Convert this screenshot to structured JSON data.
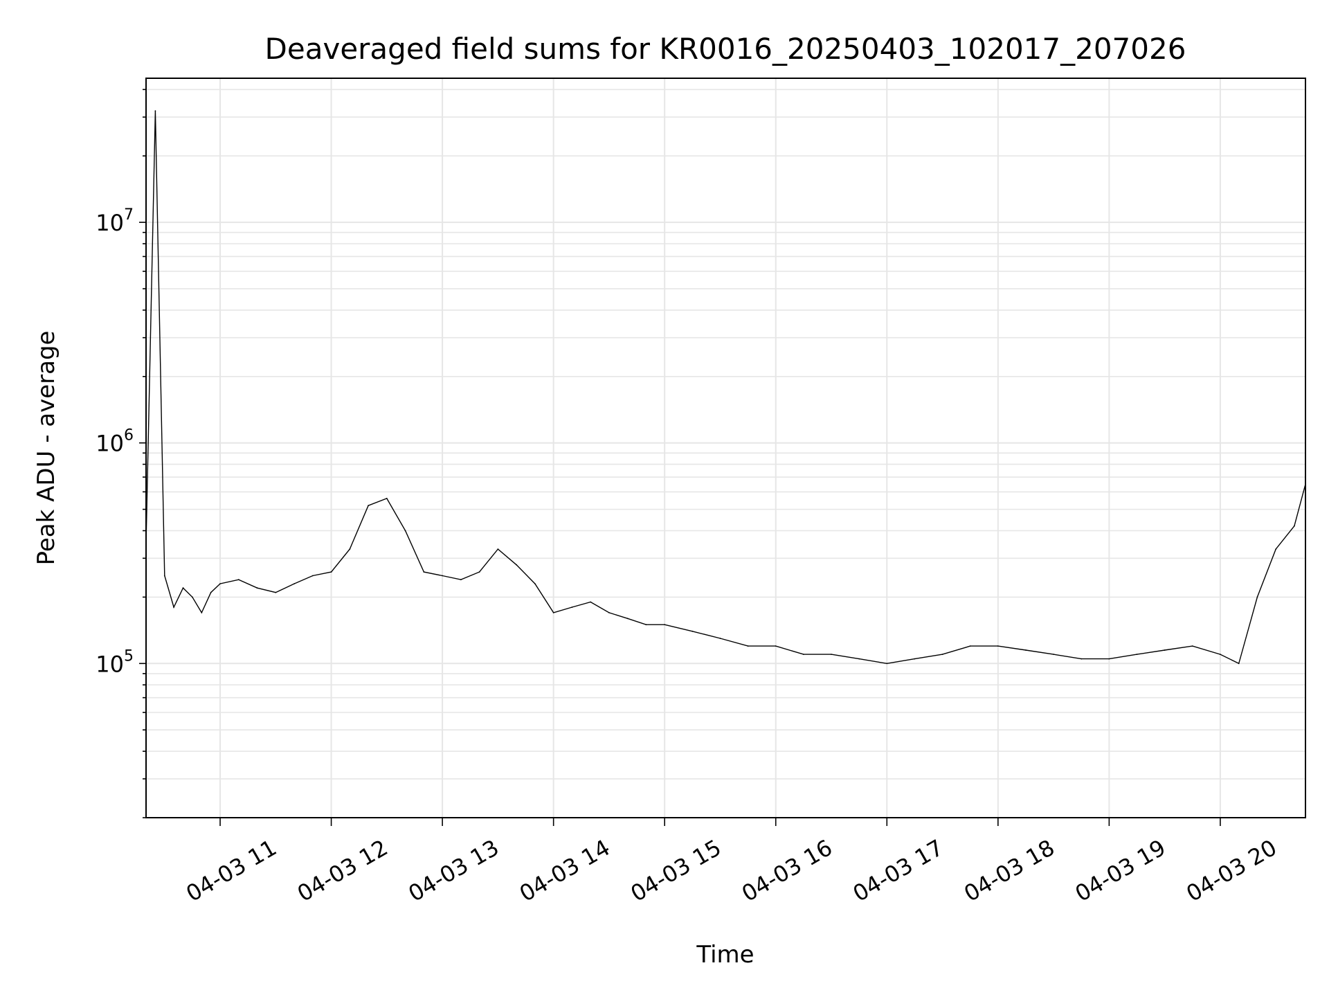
{
  "chart_data": {
    "type": "line",
    "title": "Deaveraged field sums for KR0016_20250403_102017_207026",
    "xlabel": "Time",
    "ylabel": "Peak ADU - average",
    "x_type": "time",
    "x_range": [
      "04-03 10:20",
      "04-03 20:46"
    ],
    "x_ticks": [
      "04-03 11",
      "04-03 12",
      "04-03 13",
      "04-03 14",
      "04-03 15",
      "04-03 16",
      "04-03 17",
      "04-03 18",
      "04-03 19",
      "04-03 20"
    ],
    "y_scale": "log",
    "ylim": [
      20000,
      45000000
    ],
    "y_ticks": [
      {
        "base": "10",
        "exp": "5",
        "value": 100000
      },
      {
        "base": "10",
        "exp": "6",
        "value": 1000000
      },
      {
        "base": "10",
        "exp": "7",
        "value": 10000000
      }
    ],
    "grid": true,
    "line_color": "#000000",
    "series": [
      {
        "x": [
          "04-03 10:20",
          "04-03 10:25",
          "04-03 10:30",
          "04-03 10:35",
          "04-03 10:40",
          "04-03 10:45",
          "04-03 10:50",
          "04-03 10:55",
          "04-03 11:00",
          "04-03 11:10",
          "04-03 11:20",
          "04-03 11:30",
          "04-03 11:40",
          "04-03 11:50",
          "04-03 12:00",
          "04-03 12:10",
          "04-03 12:20",
          "04-03 12:30",
          "04-03 12:40",
          "04-03 12:50",
          "04-03 13:00",
          "04-03 13:10",
          "04-03 13:20",
          "04-03 13:30",
          "04-03 13:40",
          "04-03 13:50",
          "04-03 14:00",
          "04-03 14:10",
          "04-03 14:20",
          "04-03 14:30",
          "04-03 14:40",
          "04-03 14:50",
          "04-03 15:00",
          "04-03 15:15",
          "04-03 15:30",
          "04-03 15:45",
          "04-03 16:00",
          "04-03 16:15",
          "04-03 16:30",
          "04-03 16:45",
          "04-03 17:00",
          "04-03 17:15",
          "04-03 17:30",
          "04-03 17:45",
          "04-03 18:00",
          "04-03 18:15",
          "04-03 18:30",
          "04-03 18:45",
          "04-03 19:00",
          "04-03 19:15",
          "04-03 19:30",
          "04-03 19:45",
          "04-03 20:00",
          "04-03 20:10",
          "04-03 20:20",
          "04-03 20:30",
          "04-03 20:40",
          "04-03 20:46"
        ],
        "y": [
          350000,
          32000000,
          250000,
          180000,
          220000,
          200000,
          170000,
          210000,
          230000,
          240000,
          220000,
          210000,
          230000,
          250000,
          260000,
          330000,
          520000,
          560000,
          400000,
          260000,
          250000,
          240000,
          260000,
          330000,
          280000,
          230000,
          170000,
          180000,
          190000,
          170000,
          160000,
          150000,
          150000,
          140000,
          130000,
          120000,
          120000,
          110000,
          110000,
          105000,
          100000,
          105000,
          110000,
          120000,
          120000,
          115000,
          110000,
          105000,
          105000,
          110000,
          115000,
          120000,
          110000,
          100000,
          200000,
          330000,
          420000,
          650000
        ]
      }
    ]
  }
}
